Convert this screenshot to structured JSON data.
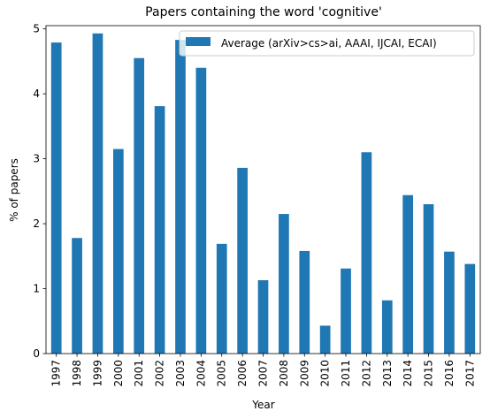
{
  "chart_data": {
    "type": "bar",
    "title": "Papers containing the word 'cognitive'",
    "xlabel": "Year",
    "ylabel": "% of papers",
    "categories": [
      "1997",
      "1998",
      "1999",
      "2000",
      "2001",
      "2002",
      "2003",
      "2004",
      "2005",
      "2006",
      "2007",
      "2008",
      "2009",
      "2010",
      "2011",
      "2012",
      "2013",
      "2014",
      "2015",
      "2016",
      "2017"
    ],
    "series": [
      {
        "name": "Average (arXiv>cs>ai, AAAI, IJCAI, ECAI)",
        "values": [
          4.79,
          1.78,
          4.93,
          3.15,
          4.55,
          3.81,
          4.83,
          4.4,
          1.69,
          2.86,
          1.13,
          2.15,
          1.58,
          0.43,
          1.31,
          3.1,
          0.82,
          2.44,
          2.3,
          1.57,
          1.38
        ]
      }
    ],
    "ylim": [
      0,
      5.05
    ],
    "yticks": [
      0,
      1,
      2,
      3,
      4,
      5
    ],
    "grid": false,
    "legend_position": "top-right",
    "colors": {
      "bar": "#1f77b4"
    }
  }
}
